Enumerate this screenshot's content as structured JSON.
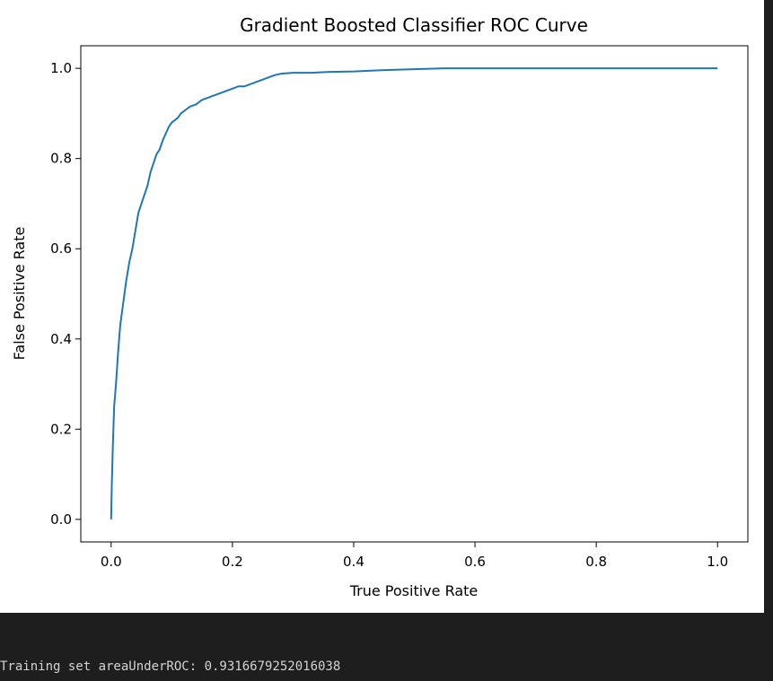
{
  "chart_data": {
    "type": "line",
    "title": "Gradient Boosted Classifier ROC Curve",
    "xlabel": "True Positive Rate",
    "ylabel": "False Positive Rate",
    "xlim": [
      -0.05,
      1.05
    ],
    "ylim": [
      -0.05,
      1.05
    ],
    "xticks": [
      0.0,
      0.2,
      0.4,
      0.6,
      0.8,
      1.0
    ],
    "xtick_labels": [
      "0.0",
      "0.2",
      "0.4",
      "0.6",
      "0.8",
      "1.0"
    ],
    "yticks": [
      0.0,
      0.2,
      0.4,
      0.6,
      0.8,
      1.0
    ],
    "ytick_labels": [
      "0.0",
      "0.2",
      "0.4",
      "0.6",
      "0.8",
      "1.0"
    ],
    "grid": false,
    "colors": {
      "line": "#1f77b4"
    },
    "series": [
      {
        "x": [
          0.0,
          0.001,
          0.003,
          0.005,
          0.008,
          0.012,
          0.015,
          0.02,
          0.025,
          0.03,
          0.035,
          0.04,
          0.045,
          0.05,
          0.055,
          0.06,
          0.065,
          0.07,
          0.075,
          0.08,
          0.085,
          0.09,
          0.095,
          0.1,
          0.105,
          0.11,
          0.115,
          0.12,
          0.125,
          0.13,
          0.14,
          0.15,
          0.16,
          0.17,
          0.18,
          0.19,
          0.2,
          0.21,
          0.22,
          0.23,
          0.24,
          0.25,
          0.26,
          0.27,
          0.28,
          0.3,
          0.33,
          0.36,
          0.4,
          0.45,
          0.5,
          0.55,
          0.6,
          0.7,
          0.8,
          0.9,
          1.0
        ],
        "y": [
          0.0,
          0.07,
          0.17,
          0.25,
          0.3,
          0.38,
          0.43,
          0.48,
          0.53,
          0.57,
          0.6,
          0.64,
          0.68,
          0.7,
          0.72,
          0.74,
          0.77,
          0.79,
          0.81,
          0.82,
          0.84,
          0.855,
          0.87,
          0.88,
          0.885,
          0.89,
          0.9,
          0.905,
          0.91,
          0.915,
          0.92,
          0.93,
          0.935,
          0.94,
          0.945,
          0.95,
          0.955,
          0.96,
          0.96,
          0.965,
          0.97,
          0.975,
          0.98,
          0.985,
          0.988,
          0.99,
          0.99,
          0.992,
          0.993,
          0.996,
          0.998,
          1.0,
          1.0,
          1.0,
          1.0,
          1.0,
          1.0
        ]
      }
    ]
  },
  "output": {
    "text": "Training set areaUnderROC: 0.9316679252016038"
  }
}
